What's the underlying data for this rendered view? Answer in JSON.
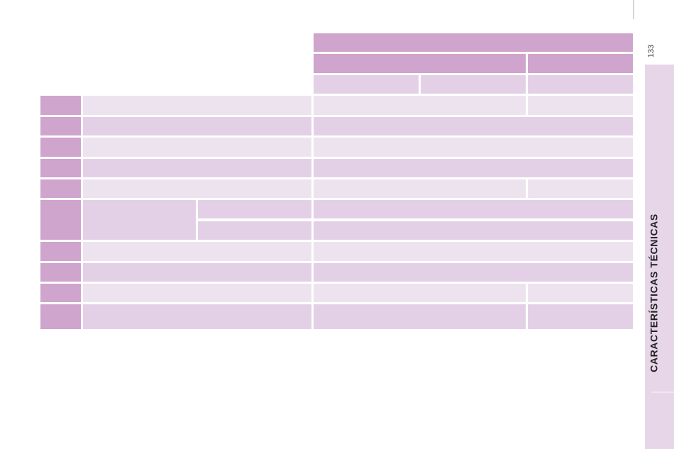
{
  "page_number": "133",
  "side_tab": "CARACTERÍSTICAS TÉCNICAS"
}
